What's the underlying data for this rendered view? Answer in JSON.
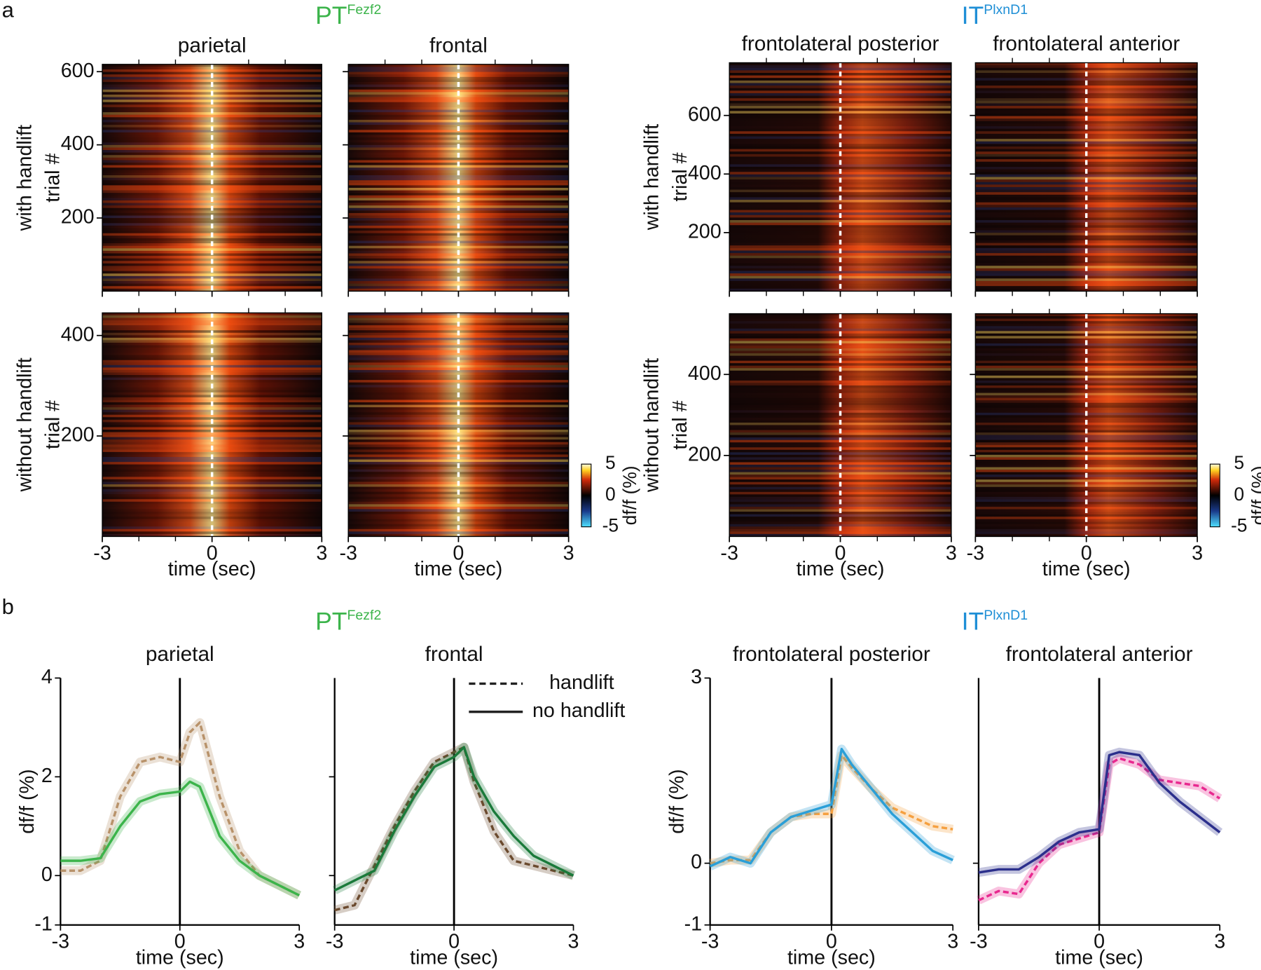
{
  "panel_labels": [
    "a",
    "b"
  ],
  "groups": [
    {
      "main": "PT",
      "sup": "Fezf2",
      "color": "#3cb44b"
    },
    {
      "main": "IT",
      "sup": "PlxnD1",
      "color": "#1f8fd6"
    }
  ],
  "legend": [
    {
      "label": "handlift",
      "dashed": true
    },
    {
      "label": "no handlift",
      "dashed": false
    }
  ],
  "chart_data": [
    {
      "type": "heatmap",
      "title": "parietal",
      "ylabel": [
        "with handlift",
        "trial #"
      ],
      "xlim": [
        -3,
        3
      ],
      "xticks": [
        -3,
        0,
        3
      ],
      "xminor": [
        -2,
        -1,
        1,
        2
      ],
      "xtick_labels": false,
      "ylim": [
        0,
        620
      ],
      "yticks": [
        200,
        400,
        600
      ],
      "marker_x": 0
    },
    {
      "type": "heatmap",
      "title": "frontal",
      "xlim": [
        -3,
        3
      ],
      "xticks": [
        -3,
        0,
        3
      ],
      "xminor": [
        -2,
        -1,
        1,
        2
      ],
      "xtick_labels": false,
      "ylim": [
        0,
        620
      ],
      "yticks": [
        200,
        400,
        600
      ],
      "ytick_labels": false,
      "marker_x": 0
    },
    {
      "type": "heatmap",
      "ylabel": [
        "without handlift",
        "trial #"
      ],
      "xlabel": "time (sec)",
      "xlim": [
        -3,
        3
      ],
      "xticks": [
        -3,
        0,
        3
      ],
      "xminor": [
        -2,
        -1,
        1,
        2
      ],
      "ylim": [
        0,
        445
      ],
      "yticks": [
        200,
        400
      ],
      "marker_x": 0
    },
    {
      "type": "heatmap",
      "xlabel": "time (sec)",
      "xlim": [
        -3,
        3
      ],
      "xticks": [
        -3,
        0,
        3
      ],
      "xminor": [
        -2,
        -1,
        1,
        2
      ],
      "ylim": [
        0,
        445
      ],
      "yticks": [
        200,
        400
      ],
      "ytick_labels": false,
      "marker_x": 0,
      "colorbar": {
        "lim": [
          -5,
          5
        ],
        "ticks": [
          5,
          0,
          -5
        ],
        "label": "df/f (%)"
      }
    },
    {
      "type": "heatmap",
      "title": "frontolateral posterior",
      "ylabel": [
        "with handlift",
        "trial #"
      ],
      "xlim": [
        -3,
        3
      ],
      "xticks": [
        -3,
        0,
        3
      ],
      "xminor": [
        -2,
        -1,
        1,
        2
      ],
      "xtick_labels": false,
      "ylim": [
        0,
        780
      ],
      "yticks": [
        200,
        400,
        600
      ],
      "marker_x": 0
    },
    {
      "type": "heatmap",
      "title": "frontolateral anterior",
      "xlim": [
        -3,
        3
      ],
      "xticks": [
        -3,
        0,
        3
      ],
      "xminor": [
        -2,
        -1,
        1,
        2
      ],
      "xtick_labels": false,
      "ylim": [
        0,
        780
      ],
      "yticks": [
        200,
        400,
        600
      ],
      "ytick_labels": false,
      "marker_x": 0
    },
    {
      "type": "heatmap",
      "ylabel": [
        "without handlift",
        "trial #"
      ],
      "xlabel": "time (sec)",
      "xlim": [
        -3,
        3
      ],
      "xticks": [
        -3,
        0,
        3
      ],
      "xminor": [
        -2,
        -1,
        1,
        2
      ],
      "ylim": [
        0,
        550
      ],
      "yticks": [
        200,
        400
      ],
      "marker_x": 0
    },
    {
      "type": "heatmap",
      "xlabel": "time (sec)",
      "xlim": [
        -3,
        3
      ],
      "xticks": [
        -3,
        0,
        3
      ],
      "xminor": [
        -2,
        -1,
        1,
        2
      ],
      "ylim": [
        0,
        550
      ],
      "yticks": [
        200,
        400
      ],
      "ytick_labels": false,
      "marker_x": 0,
      "colorbar": {
        "lim": [
          -5,
          5
        ],
        "ticks": [
          5,
          0,
          -5
        ],
        "label": "df/f (%)"
      }
    },
    {
      "type": "line",
      "title": "parietal",
      "ylabel": "df/f (%)",
      "xlabel": "time (sec)",
      "xlim": [
        -3,
        3
      ],
      "xticks": [
        -3,
        0,
        3
      ],
      "ylim": [
        -1,
        4
      ],
      "yticks": [
        -1,
        0,
        2,
        4
      ],
      "marker_x": 0,
      "x": [
        -3,
        -2.5,
        -2,
        -1.5,
        -1,
        -0.5,
        0,
        0.25,
        0.5,
        1,
        1.5,
        2,
        2.5,
        3
      ],
      "series": [
        {
          "color": "#b8926a",
          "dashed": true,
          "values": [
            0.1,
            0.1,
            0.3,
            1.6,
            2.3,
            2.4,
            2.3,
            2.9,
            3.1,
            1.6,
            0.5,
            0,
            -0.2,
            -0.4
          ]
        },
        {
          "color": "#3cb44b",
          "dashed": false,
          "values": [
            0.3,
            0.3,
            0.35,
            1.0,
            1.5,
            1.65,
            1.7,
            1.9,
            1.8,
            0.8,
            0.3,
            0,
            -0.2,
            -0.4
          ]
        }
      ]
    },
    {
      "type": "line",
      "title": "frontal",
      "xlabel": "time (sec)",
      "xlim": [
        -3,
        3
      ],
      "xticks": [
        -3,
        0,
        3
      ],
      "ylim": [
        -1,
        4
      ],
      "yticks": [
        0,
        2
      ],
      "ytick_labels": false,
      "marker_x": 0,
      "legend": true,
      "x": [
        -3,
        -2.5,
        -2,
        -1.5,
        -1,
        -0.5,
        0,
        0.25,
        0.5,
        1,
        1.5,
        2,
        2.5,
        3
      ],
      "series": [
        {
          "color": "#6b4a2e",
          "dashed": true,
          "values": [
            -0.7,
            -0.6,
            0.2,
            1.0,
            1.7,
            2.3,
            2.5,
            2.6,
            1.9,
            0.9,
            0.3,
            0.2,
            0.1,
            0
          ]
        },
        {
          "color": "#1a7a3a",
          "dashed": false,
          "values": [
            -0.3,
            -0.1,
            0.1,
            0.9,
            1.6,
            2.2,
            2.4,
            2.6,
            2.0,
            1.3,
            0.8,
            0.4,
            0.2,
            0
          ]
        }
      ]
    },
    {
      "type": "line",
      "title": "frontolateral posterior",
      "ylabel": "df/f (%)",
      "xlabel": "time (sec)",
      "xlim": [
        -3,
        3
      ],
      "xticks": [
        -3,
        0,
        3
      ],
      "ylim": [
        -1,
        3
      ],
      "yticks": [
        -1,
        0,
        3
      ],
      "marker_x": 0,
      "x": [
        -3,
        -2.5,
        -2,
        -1.5,
        -1,
        -0.5,
        0,
        0.25,
        0.5,
        1,
        1.5,
        2,
        2.5,
        3
      ],
      "series": [
        {
          "color": "#f5a040",
          "dashed": true,
          "values": [
            0,
            0.05,
            0.05,
            0.5,
            0.75,
            0.8,
            0.8,
            1.75,
            1.55,
            1.2,
            0.9,
            0.75,
            0.6,
            0.55
          ]
        },
        {
          "color": "#2a9fd8",
          "dashed": false,
          "values": [
            -0.05,
            0.1,
            0,
            0.5,
            0.75,
            0.85,
            0.95,
            1.85,
            1.6,
            1.2,
            0.8,
            0.5,
            0.2,
            0.05
          ]
        }
      ]
    },
    {
      "type": "line",
      "title": "frontolateral anterior",
      "xlabel": "time (sec)",
      "xlim": [
        -3,
        3
      ],
      "xticks": [
        -3,
        0,
        3
      ],
      "ylim": [
        -1,
        3
      ],
      "yticks": [
        0
      ],
      "ytick_labels": false,
      "marker_x": 0,
      "x": [
        -3,
        -2.5,
        -2,
        -1.5,
        -1,
        -0.5,
        0,
        0.25,
        0.5,
        1,
        1.5,
        2,
        2.5,
        3
      ],
      "series": [
        {
          "color": "#e8288f",
          "dashed": true,
          "values": [
            -0.6,
            -0.45,
            -0.5,
            0,
            0.3,
            0.4,
            0.5,
            1.6,
            1.7,
            1.6,
            1.35,
            1.3,
            1.25,
            1.05
          ]
        },
        {
          "color": "#2b2f8c",
          "dashed": false,
          "values": [
            -0.15,
            -0.1,
            -0.1,
            0.1,
            0.35,
            0.5,
            0.55,
            1.75,
            1.8,
            1.75,
            1.3,
            1.0,
            0.75,
            0.5
          ]
        }
      ]
    }
  ]
}
